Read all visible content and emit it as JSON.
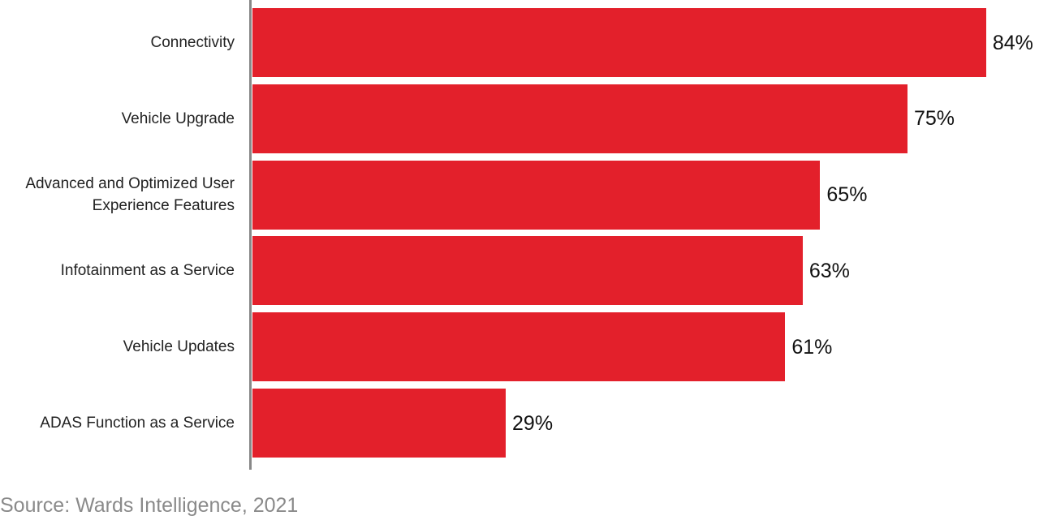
{
  "chart_data": {
    "type": "bar",
    "orientation": "horizontal",
    "categories": [
      "Connectivity",
      "Vehicle Upgrade",
      "Advanced and Optimized User Experience Features",
      "Infotainment as a Service",
      "Vehicle Updates",
      "ADAS Function as a Service"
    ],
    "values": [
      84,
      75,
      65,
      63,
      61,
      29
    ],
    "value_labels": [
      "84%",
      "75%",
      "65%",
      "63%",
      "61%",
      "29%"
    ],
    "color": "#e3202b",
    "source": "Source: Wards Intelligence, 2021"
  }
}
